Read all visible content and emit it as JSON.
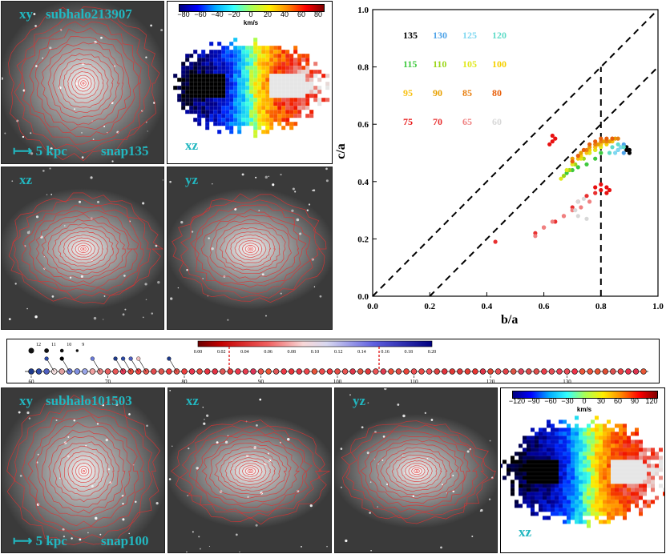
{
  "top_galaxy": {
    "panels": {
      "xy": {
        "label": "xy",
        "name": "subhalo213907",
        "scale": "5 kpc",
        "snap": "snap135"
      },
      "xz": {
        "label": "xz"
      },
      "yz": {
        "label": "yz"
      }
    },
    "velocity_map": {
      "label": "xz",
      "unit": "km/s",
      "ticks": [
        "−80",
        "−60",
        "−40",
        "−20",
        "0",
        "20",
        "40",
        "60",
        "80"
      ]
    }
  },
  "bottom_galaxy": {
    "panels": {
      "xy": {
        "label": "xy",
        "name": "subhalo101503",
        "scale": "5 kpc",
        "snap": "snap100"
      },
      "xz": {
        "label": "xz"
      },
      "yz": {
        "label": "yz"
      }
    },
    "velocity_map": {
      "label": "xz",
      "unit": "km/s",
      "ticks": [
        "−120",
        "−90",
        "−60",
        "−30",
        "0",
        "30",
        "60",
        "90",
        "120"
      ]
    }
  },
  "merger_tree": {
    "colorbar_ticks": [
      "0.00",
      "0.02",
      "0.04",
      "0.06",
      "0.08",
      "0.10",
      "0.12",
      "0.14",
      "0.16",
      "0.18",
      "0.20"
    ],
    "axis_ticks": [
      "60",
      "70",
      "80",
      "90",
      "100",
      "110",
      "120",
      "130"
    ],
    "branch_labels": [
      "12",
      "11",
      "10",
      "9"
    ]
  },
  "chart_data": {
    "type": "scatter",
    "title": "",
    "xlabel": "b/a",
    "ylabel": "c/a",
    "xlim": [
      0.0,
      1.0
    ],
    "ylim": [
      0.0,
      1.0
    ],
    "xticks": [
      "0.0",
      "0.2",
      "0.4",
      "0.6",
      "0.8",
      "1.0"
    ],
    "yticks": [
      "0.0",
      "0.2",
      "0.4",
      "0.6",
      "0.8",
      "1.0"
    ],
    "grid": false,
    "reference_lines": [
      {
        "x": [
          0.0,
          1.0
        ],
        "y": [
          0.0,
          1.0
        ],
        "style": "dashed"
      },
      {
        "x": [
          0.2,
          1.0
        ],
        "y": [
          0.0,
          0.8
        ],
        "style": "dashed"
      },
      {
        "x": [
          0.8,
          0.8
        ],
        "y": [
          0.0,
          0.8
        ],
        "style": "dashed"
      }
    ],
    "legend": [
      {
        "snap": "135",
        "color": "#000000"
      },
      {
        "snap": "130",
        "color": "#4ea3e8"
      },
      {
        "snap": "125",
        "color": "#7fd8f0"
      },
      {
        "snap": "120",
        "color": "#5fdcc8"
      },
      {
        "snap": "115",
        "color": "#3ec93e"
      },
      {
        "snap": "110",
        "color": "#9bd619"
      },
      {
        "snap": "105",
        "color": "#e0e81c"
      },
      {
        "snap": "100",
        "color": "#f5d000"
      },
      {
        "snap": "95",
        "color": "#f8c010"
      },
      {
        "snap": "90",
        "color": "#e8a000"
      },
      {
        "snap": "85",
        "color": "#e87f10"
      },
      {
        "snap": "80",
        "color": "#e8600c"
      },
      {
        "snap": "75",
        "color": "#e81010"
      },
      {
        "snap": "70",
        "color": "#e83030"
      },
      {
        "snap": "65",
        "color": "#f08080"
      },
      {
        "snap": "60",
        "color": "#d8d8d8"
      }
    ],
    "series": [
      {
        "name": "135",
        "x": [
          0.89,
          0.9,
          0.9,
          0.89
        ],
        "y": [
          0.52,
          0.51,
          0.5,
          0.51
        ]
      },
      {
        "name": "130",
        "x": [
          0.88,
          0.87,
          0.86,
          0.88
        ],
        "y": [
          0.53,
          0.52,
          0.51,
          0.5
        ]
      },
      {
        "name": "125",
        "x": [
          0.85,
          0.86,
          0.87
        ],
        "y": [
          0.5,
          0.51,
          0.52
        ]
      },
      {
        "name": "120",
        "x": [
          0.83,
          0.84,
          0.86,
          0.88
        ],
        "y": [
          0.5,
          0.52,
          0.53,
          0.52
        ]
      },
      {
        "name": "115",
        "x": [
          0.8,
          0.78,
          0.75,
          0.72,
          0.7,
          0.68
        ],
        "y": [
          0.5,
          0.48,
          0.46,
          0.45,
          0.44,
          0.43
        ]
      },
      {
        "name": "110",
        "x": [
          0.78,
          0.76,
          0.74,
          0.71,
          0.69,
          0.67
        ],
        "y": [
          0.51,
          0.5,
          0.48,
          0.46,
          0.44,
          0.42
        ]
      },
      {
        "name": "105",
        "x": [
          0.8,
          0.78,
          0.76,
          0.73,
          0.7,
          0.68,
          0.66
        ],
        "y": [
          0.52,
          0.51,
          0.5,
          0.48,
          0.46,
          0.44,
          0.41
        ]
      },
      {
        "name": "100",
        "x": [
          0.82,
          0.8,
          0.78,
          0.76,
          0.73,
          0.7
        ],
        "y": [
          0.53,
          0.53,
          0.52,
          0.51,
          0.49,
          0.47
        ]
      },
      {
        "name": "95",
        "x": [
          0.84,
          0.82,
          0.8,
          0.78,
          0.75,
          0.72
        ],
        "y": [
          0.54,
          0.54,
          0.53,
          0.52,
          0.5,
          0.48
        ]
      },
      {
        "name": "90",
        "x": [
          0.85,
          0.83,
          0.81,
          0.79,
          0.76,
          0.73,
          0.7
        ],
        "y": [
          0.55,
          0.54,
          0.54,
          0.53,
          0.52,
          0.5,
          0.48
        ]
      },
      {
        "name": "85",
        "x": [
          0.86,
          0.84,
          0.82,
          0.8,
          0.78,
          0.75
        ],
        "y": [
          0.55,
          0.55,
          0.54,
          0.54,
          0.53,
          0.51
        ]
      },
      {
        "name": "80",
        "x": [
          0.84,
          0.82,
          0.8,
          0.78,
          0.76,
          0.74,
          0.72,
          0.7
        ],
        "y": [
          0.55,
          0.55,
          0.55,
          0.54,
          0.53,
          0.51,
          0.49,
          0.47
        ]
      },
      {
        "name": "75",
        "x": [
          0.62,
          0.63,
          0.64,
          0.63,
          0.8,
          0.82,
          0.83,
          0.82,
          0.8,
          0.78
        ],
        "y": [
          0.53,
          0.54,
          0.55,
          0.56,
          0.39,
          0.38,
          0.37,
          0.36,
          0.37,
          0.38
        ]
      },
      {
        "name": "70",
        "x": [
          0.78,
          0.75,
          0.72,
          0.7,
          0.67,
          0.64,
          0.6,
          0.57,
          0.43
        ],
        "y": [
          0.36,
          0.35,
          0.33,
          0.31,
          0.28,
          0.26,
          0.24,
          0.22,
          0.19
        ]
      },
      {
        "name": "65",
        "x": [
          0.76,
          0.73,
          0.7,
          0.67,
          0.63,
          0.6,
          0.57
        ],
        "y": [
          0.33,
          0.31,
          0.3,
          0.28,
          0.26,
          0.24,
          0.21
        ]
      },
      {
        "name": "60",
        "x": [
          0.74,
          0.72,
          0.71,
          0.72,
          0.75
        ],
        "y": [
          0.34,
          0.33,
          0.3,
          0.28,
          0.27
        ]
      }
    ]
  }
}
